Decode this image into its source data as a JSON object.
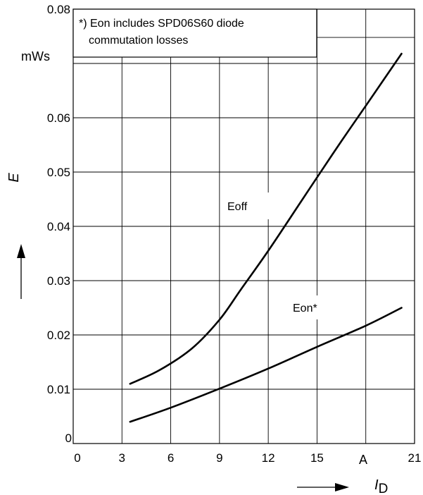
{
  "chart_data": {
    "type": "line",
    "xlim": [
      0,
      21
    ],
    "ylim": [
      0,
      0.08
    ],
    "x_ticks": [
      "0",
      "3",
      "6",
      "9",
      "12",
      "15",
      "21"
    ],
    "x_unit_label": "A",
    "y_ticks": [
      "0",
      "0.01",
      "0.02",
      "0.03",
      "0.04",
      "0.05",
      "0.06",
      "0.08"
    ],
    "y_unit_label": "mWs",
    "xlabel": "I",
    "xlabel_sub": "D",
    "ylabel": "E",
    "grid": true,
    "annotation": {
      "line1": "*) Eon includes SPD06S60 diode",
      "line2": "commutation losses"
    },
    "series": [
      {
        "name": "Eoff",
        "x": [
          3.5,
          5.3,
          7.3,
          9.0,
          10.3,
          12.0,
          14.0,
          15.0,
          16.5,
          18.0,
          20.2
        ],
        "y": [
          0.011,
          0.0135,
          0.0175,
          0.0228,
          0.0283,
          0.0355,
          0.0445,
          0.049,
          0.0557,
          0.0622,
          0.0718
        ]
      },
      {
        "name": "Eon*",
        "x": [
          3.5,
          6.0,
          9.0,
          12.0,
          15.0,
          18.0,
          20.2
        ],
        "y": [
          0.004,
          0.0066,
          0.0101,
          0.0138,
          0.0178,
          0.0217,
          0.025
        ]
      }
    ]
  }
}
